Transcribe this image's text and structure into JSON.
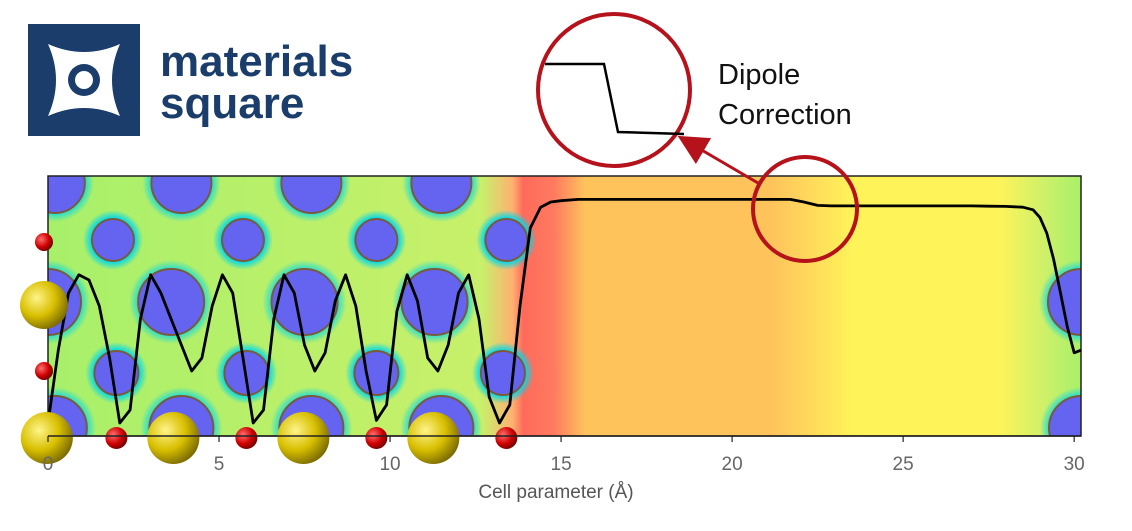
{
  "brand": {
    "line1": "materials",
    "line2": "square",
    "color": "#1a3d6b"
  },
  "callout": {
    "line1": "Dipole",
    "line2": "Correction",
    "color": "#b5121b"
  },
  "colors": {
    "atom_cut": "#6464f0",
    "field_green": "#a8f06a",
    "slab_edge_red": "#ff6a5a",
    "vacuum_orange": "#ffc35c",
    "vacuum_yellow": "#fff35a",
    "curve": "#000000",
    "sulfur_atom": "#e0c800",
    "oxygen_atom": "#d00000"
  },
  "chart_data": {
    "type": "line",
    "title": "",
    "xlabel": "Cell parameter (Å)",
    "ylabel": "",
    "xlim": [
      0,
      30.2
    ],
    "xticks": [
      0,
      5,
      10,
      15,
      20,
      25,
      30
    ],
    "xtick_labels": [
      "0",
      "5",
      "10",
      "15",
      "20",
      "25",
      "30"
    ],
    "series": [
      {
        "x": [
          0.0,
          0.3,
          0.6,
          0.9,
          1.2,
          1.5,
          1.8,
          2.1,
          2.4,
          2.7,
          3.0,
          3.3,
          3.6,
          3.9,
          4.2,
          4.5,
          4.8,
          5.1,
          5.4,
          5.7,
          6.0,
          6.3,
          6.6,
          6.9,
          7.2,
          7.5,
          7.8,
          8.1,
          8.4,
          8.7,
          9.0,
          9.3,
          9.6,
          9.9,
          10.2,
          10.5,
          10.8,
          11.1,
          11.4,
          11.7,
          12.0,
          12.3,
          12.6,
          12.9,
          13.2,
          13.5,
          13.8,
          14.1,
          14.4,
          14.7,
          15.0,
          15.5,
          16.0,
          17.0,
          18.0,
          19.0,
          20.0,
          21.0,
          21.7,
          22.1,
          22.5,
          22.9,
          23.5,
          24.0,
          25.0,
          26.0,
          27.0,
          27.5,
          28.0,
          28.5,
          28.8,
          29.0,
          29.2,
          29.4,
          29.6,
          29.8,
          30.0,
          30.2
        ],
        "y": [
          0.05,
          0.33,
          0.55,
          0.62,
          0.6,
          0.5,
          0.3,
          0.05,
          0.1,
          0.45,
          0.62,
          0.55,
          0.45,
          0.35,
          0.25,
          0.3,
          0.5,
          0.62,
          0.55,
          0.3,
          0.05,
          0.1,
          0.45,
          0.62,
          0.55,
          0.35,
          0.25,
          0.32,
          0.52,
          0.62,
          0.5,
          0.25,
          0.06,
          0.12,
          0.48,
          0.62,
          0.52,
          0.3,
          0.25,
          0.35,
          0.55,
          0.62,
          0.45,
          0.15,
          0.05,
          0.12,
          0.5,
          0.8,
          0.88,
          0.9,
          0.905,
          0.91,
          0.91,
          0.91,
          0.91,
          0.91,
          0.91,
          0.91,
          0.91,
          0.9,
          0.887,
          0.885,
          0.885,
          0.885,
          0.885,
          0.885,
          0.885,
          0.884,
          0.883,
          0.88,
          0.87,
          0.84,
          0.78,
          0.68,
          0.55,
          0.42,
          0.32,
          0.33
        ]
      }
    ],
    "grid": false,
    "legend": "none"
  }
}
